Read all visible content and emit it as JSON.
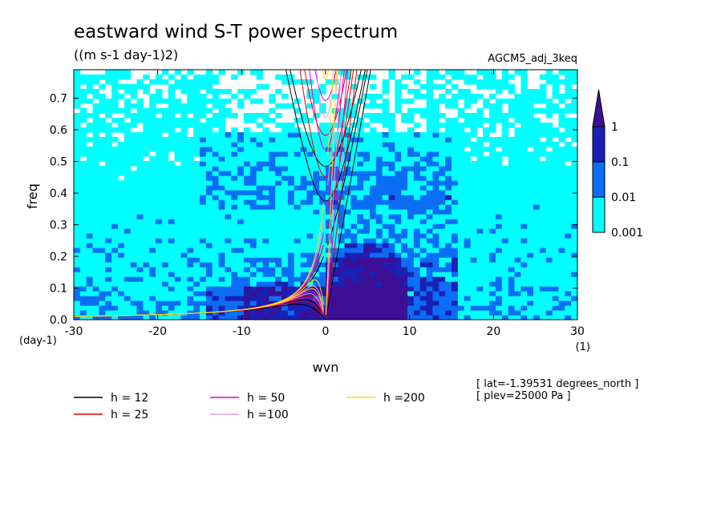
{
  "chart_data": {
    "type": "heatmap",
    "title": "eastward wind S-T power spectrum",
    "subtitle": "((m s-1 day-1)2)",
    "run_label": "AGCM5_adj_3keq",
    "xlabel": "wvn",
    "ylabel": "freq",
    "x_unit": "(1)",
    "y_unit": "(day-1)",
    "xlim": [
      -30,
      30
    ],
    "ylim": [
      0,
      0.79
    ],
    "xticks": [
      "-30",
      "-20",
      "-10",
      "0",
      "10",
      "20",
      "30"
    ],
    "yticks": [
      "0.0",
      "0.1",
      "0.2",
      "0.3",
      "0.4",
      "0.5",
      "0.6",
      "0.7"
    ],
    "colorbar": {
      "levels": [
        "0.001",
        "0.01",
        "0.1",
        "1"
      ],
      "colors": [
        "#ffffff",
        "#00ffff",
        "#0a6ef5",
        "#1a20b4",
        "#3c0f96"
      ]
    },
    "dispersion_curves": [
      {
        "label": "h = 12",
        "h": 12,
        "color": "#000000"
      },
      {
        "label": "h = 25",
        "h": 25,
        "color": "#e60000"
      },
      {
        "label": "h = 50",
        "h": 50,
        "color": "#e600c8"
      },
      {
        "label": "h =100",
        "h": 100,
        "color": "#e6a0e6"
      },
      {
        "label": "h =200",
        "h": 200,
        "color": "#ffdc00"
      }
    ],
    "annotations": [
      "[ lat=-1.39531 degrees_north ]",
      "[ plev=25000 Pa ]"
    ]
  }
}
